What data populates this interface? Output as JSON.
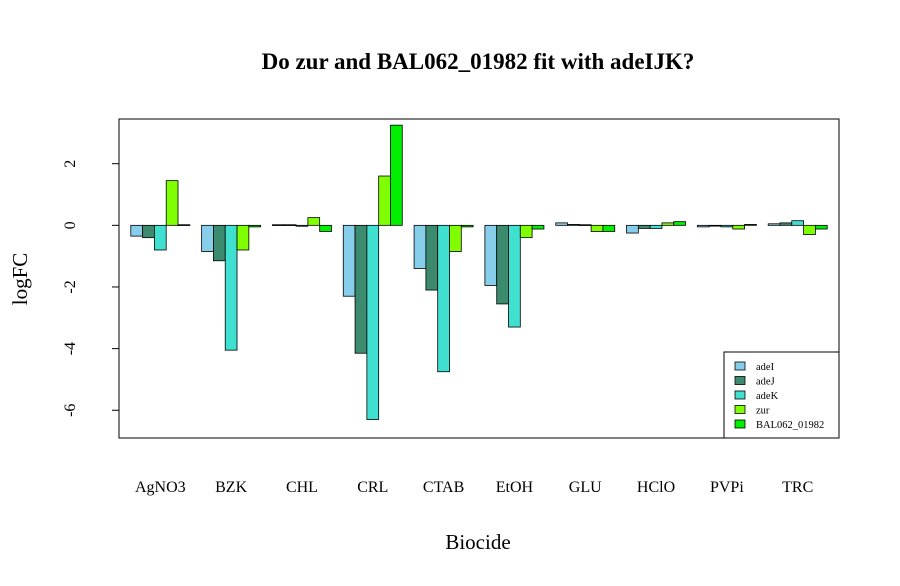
{
  "chart_data": {
    "type": "bar",
    "title": "Do zur and BAL062_01982 fit with adeIJK?",
    "xlabel": "Biocide",
    "ylabel": "logFC",
    "categories": [
      "AgNO3",
      "BZK",
      "CHL",
      "CRL",
      "CTAB",
      "EtOH",
      "GLU",
      "HClO",
      "PVPi",
      "TRC"
    ],
    "yticks": [
      "-6",
      "-4",
      "-2",
      "0",
      "2"
    ],
    "ylim": [
      -6.9,
      3.45
    ],
    "legend_position": "bottom-right",
    "series": [
      {
        "name": "adeI",
        "color": "#87CEEB",
        "values": [
          -0.35,
          -0.85,
          0.02,
          -2.3,
          -1.4,
          -1.95,
          0.08,
          -0.25,
          -0.05,
          0.05
        ]
      },
      {
        "name": "adeJ",
        "color": "#3D8B6F",
        "values": [
          -0.4,
          -1.15,
          0.02,
          -4.15,
          -2.1,
          -2.55,
          0.03,
          -0.1,
          -0.02,
          0.08
        ]
      },
      {
        "name": "adeK",
        "color": "#40E0D0",
        "values": [
          -0.8,
          -4.05,
          -0.03,
          -6.3,
          -4.75,
          -3.3,
          0.02,
          -0.1,
          -0.05,
          0.15
        ]
      },
      {
        "name": "zur",
        "color": "#7FFF00",
        "values": [
          1.45,
          -0.8,
          0.25,
          1.6,
          -0.85,
          -0.4,
          -0.2,
          0.08,
          -0.12,
          -0.3
        ]
      },
      {
        "name": "BAL062_01982",
        "color": "#00EE00",
        "values": [
          0.02,
          -0.05,
          -0.2,
          3.25,
          -0.05,
          -0.12,
          -0.2,
          0.12,
          0.03,
          -0.12
        ]
      }
    ]
  }
}
